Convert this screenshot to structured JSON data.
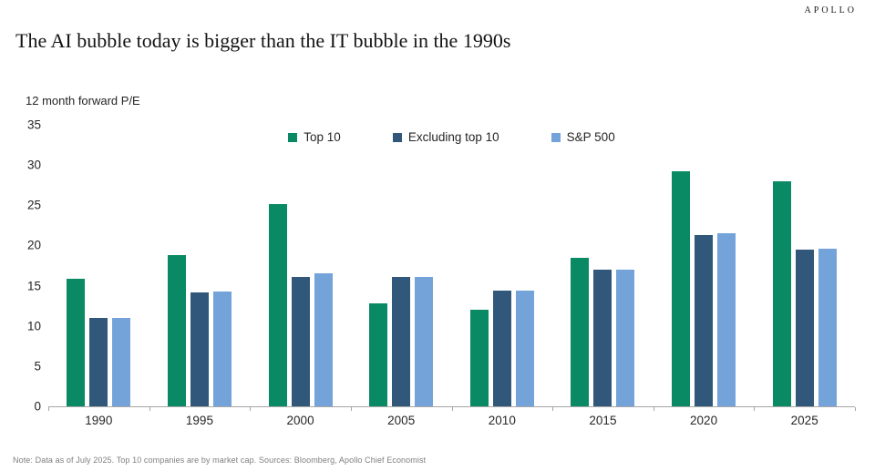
{
  "brand": "APOLLO",
  "title": "The AI bubble today is bigger than the IT bubble in the 1990s",
  "axis_title": "12 month forward P/E",
  "note": "Note: Data as of July 2025. Top 10 companies are by market cap. Sources: Bloomberg, Apollo Chief Economist",
  "colors": {
    "top10": "#0a8a64",
    "excluding_top10": "#31587a",
    "sp500": "#74a3da",
    "axis_line": "#a6a6a6",
    "chart_text": "#262626",
    "note_text": "#7f7f7f"
  },
  "chart_data": {
    "type": "bar",
    "title": "The AI bubble today is bigger than the IT bubble in the 1990s",
    "ylabel": "12 month forward P/E",
    "xlabel": "",
    "categories": [
      "1990",
      "1995",
      "2000",
      "2005",
      "2010",
      "2015",
      "2020",
      "2025"
    ],
    "series": [
      {
        "name": "Top 10",
        "color": "#0a8a64",
        "values": [
          15.9,
          18.8,
          25.2,
          12.8,
          12.0,
          18.5,
          29.2,
          28.0
        ]
      },
      {
        "name": "Excluding top 10",
        "color": "#31587a",
        "values": [
          11.0,
          14.2,
          16.1,
          16.1,
          14.4,
          17.0,
          21.3,
          19.5
        ]
      },
      {
        "name": "S&P 500",
        "color": "#74a3da",
        "values": [
          11.0,
          14.3,
          16.5,
          16.1,
          14.4,
          17.0,
          21.5,
          19.6
        ]
      }
    ],
    "ylim": [
      0,
      35
    ],
    "yticks": [
      0,
      5,
      10,
      15,
      20,
      25,
      30,
      35
    ],
    "grid": false,
    "legend_position": "top-center"
  }
}
